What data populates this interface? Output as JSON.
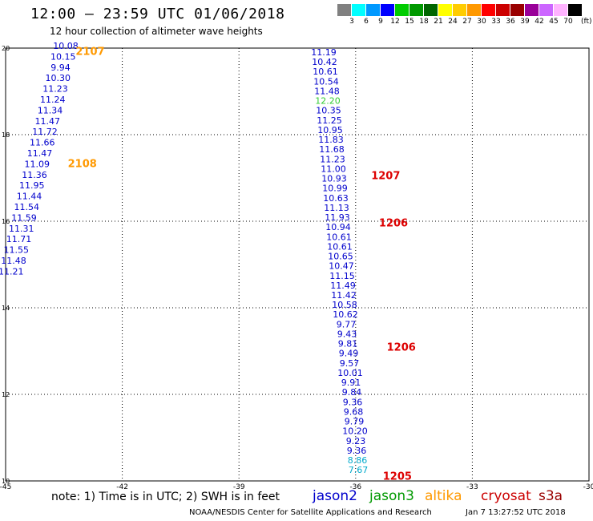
{
  "title": "12:00 – 23:59 UTC 01/06/2018",
  "subtitle": "12 hour collection of altimeter wave heights",
  "scale": {
    "unit": "(ft)",
    "colors": [
      "#808080",
      "#00ffff",
      "#0099ff",
      "#0000ff",
      "#00cc00",
      "#009900",
      "#006600",
      "#ffff00",
      "#ffcc00",
      "#ff9900",
      "#ff0000",
      "#cc0000",
      "#990000",
      "#990099",
      "#cc66ff",
      "#ffb3ff",
      "#000000"
    ],
    "labels": [
      "3",
      "6",
      "9",
      "12",
      "15",
      "18",
      "21",
      "24",
      "27",
      "30",
      "33",
      "36",
      "39",
      "42",
      "45",
      "70"
    ]
  },
  "axes": {
    "x_ticks": [
      "-45",
      "-42",
      "-39",
      "-36",
      "-33",
      "-30"
    ],
    "y_ticks": [
      "20",
      "18",
      "16",
      "14",
      "12",
      "10"
    ],
    "lon_range": [
      -45,
      -30
    ],
    "lat_range": [
      10,
      20
    ]
  },
  "track1": {
    "values": [
      "10.08",
      "10.15",
      "9.94",
      "10.30",
      "11.23",
      "11.24",
      "11.34",
      "11.47",
      "11.72",
      "11.66",
      "11.47",
      "11.09",
      "11.36",
      "11.95",
      "11.44",
      "11.54",
      "11.59",
      "11.31",
      "11.71",
      "11.55",
      "11.48",
      "11.21"
    ],
    "colors": [
      "blue",
      "blue",
      "blue",
      "blue",
      "blue",
      "blue",
      "blue",
      "blue",
      "blue",
      "blue",
      "blue",
      "blue",
      "blue",
      "blue",
      "blue",
      "blue",
      "blue",
      "blue",
      "blue",
      "blue",
      "blue",
      "blue"
    ]
  },
  "track2": {
    "values": [
      "11.19",
      "10.42",
      "10.61",
      "10.54",
      "11.48",
      "12.20",
      "10.35",
      "11.25",
      "10.95",
      "11.83",
      "11.68",
      "11.23",
      "11.00",
      "10.93",
      "10.99",
      "10.63",
      "11.13",
      "11.93",
      "10.94",
      "10.61",
      "10.61",
      "10.65",
      "10.47",
      "11.15",
      "11.49",
      "11.42",
      "10.58",
      "10.62",
      "9.77",
      "9.43",
      "9.81",
      "9.49",
      "9.57",
      "10.01",
      "9.91",
      "9.84",
      "9.36",
      "9.68",
      "9.79",
      "10.20",
      "9.23",
      "9.36",
      "8.86",
      "7.67"
    ],
    "colors": [
      "blue",
      "blue",
      "blue",
      "blue",
      "blue",
      "green",
      "blue",
      "blue",
      "blue",
      "blue",
      "blue",
      "blue",
      "blue",
      "blue",
      "blue",
      "blue",
      "blue",
      "blue",
      "blue",
      "blue",
      "blue",
      "blue",
      "blue",
      "blue",
      "blue",
      "blue",
      "blue",
      "blue",
      "blue",
      "blue",
      "blue",
      "blue",
      "blue",
      "blue",
      "blue",
      "blue",
      "blue",
      "blue",
      "blue",
      "blue",
      "blue",
      "blue",
      "cyan",
      "cyan"
    ]
  },
  "time_labels": [
    "2107",
    "2108",
    "1207",
    "1206",
    "1206",
    "1205"
  ],
  "note": "note:  1) Time is in UTC;  2) SWH is in feet",
  "satellites": [
    "jason2",
    "jason3",
    "altika",
    "cryosat",
    "s3a"
  ],
  "satellite_colors": [
    "#0000cc",
    "#009900",
    "#ff9900",
    "#cc0000",
    "#990000"
  ],
  "footer": "NOAA/NESDIS Center for Satellite Applications and Research",
  "footer_stamp": "Jan  7 13:27:52 UTC 2018"
}
